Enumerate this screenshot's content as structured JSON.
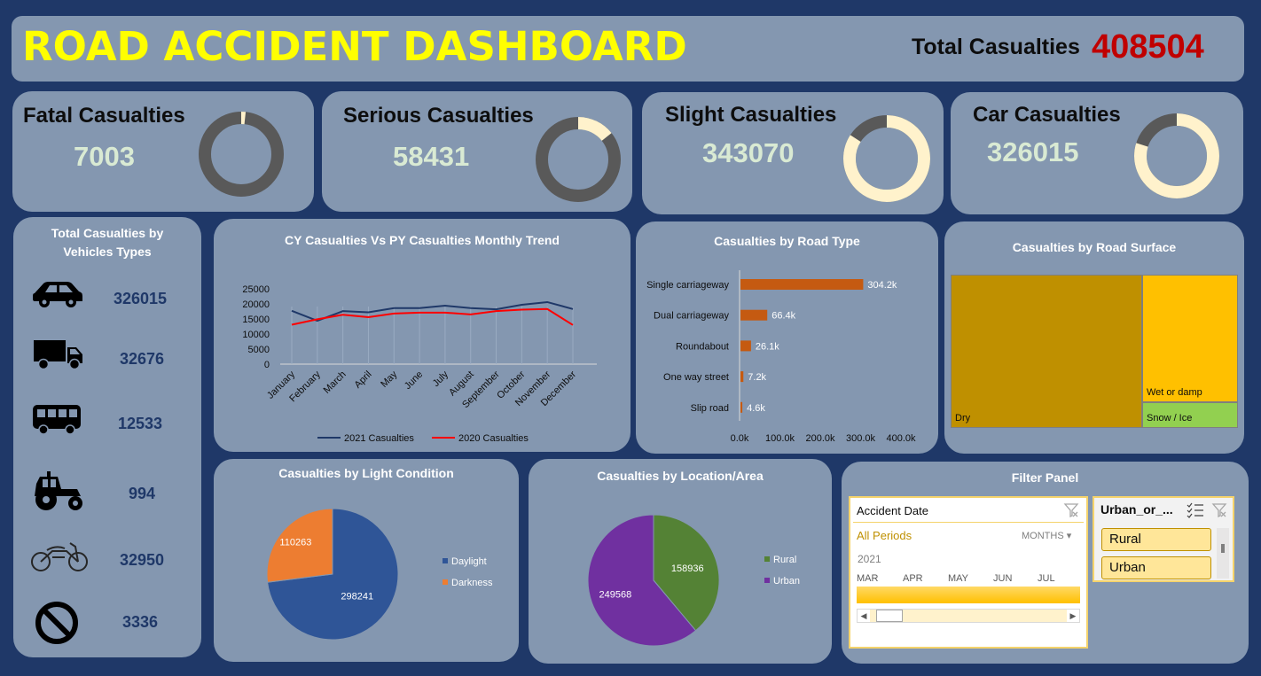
{
  "header": {
    "title": "ROAD ACCIDENT DASHBOARD",
    "total_label": "Total Casualties",
    "total_value": "408504"
  },
  "kpis": [
    {
      "label": "Fatal Casualties",
      "value": "7003",
      "share": 0.017
    },
    {
      "label": "Serious Casualties",
      "value": "58431",
      "share": 0.143
    },
    {
      "label": "Slight Casualties",
      "value": "343070",
      "share": 0.84
    },
    {
      "label": "Car Casualties",
      "value": "326015",
      "share": 0.798
    }
  ],
  "colors": {
    "donut_highlight": "#fff2cc",
    "donut_rest": "#595959",
    "line_2021": "#1f3868",
    "line_2020": "#ff0000",
    "bar": "#c55a11",
    "daylight": "#2f5597",
    "darkness": "#ed7d31",
    "rural": "#548235",
    "urban": "#7030a0",
    "dry": "#bf9000",
    "wet": "#ffc000",
    "snow": "#92d050"
  },
  "vehicles": {
    "title_line1": "Total Casualties by",
    "title_line2": "Vehicles Types",
    "items": [
      {
        "icon": "car-icon",
        "value": "326015"
      },
      {
        "icon": "truck-icon",
        "value": "32676"
      },
      {
        "icon": "bus-icon",
        "value": "12533"
      },
      {
        "icon": "tractor-icon",
        "value": "994"
      },
      {
        "icon": "motorcycle-icon",
        "value": "32950"
      },
      {
        "icon": "other-icon",
        "value": "3336"
      }
    ]
  },
  "trend": {
    "title": "CY Casualties Vs PY Casualties Monthly Trend",
    "chart_data": {
      "type": "line",
      "categories": [
        "January",
        "February",
        "March",
        "April",
        "May",
        "June",
        "July",
        "August",
        "September",
        "October",
        "November",
        "December"
      ],
      "series": [
        {
          "name": "2021 Casualties",
          "values": [
            17700,
            14400,
            17600,
            17200,
            18600,
            18600,
            19400,
            18600,
            18200,
            19700,
            20600,
            18300
          ]
        },
        {
          "name": "2020 Casualties",
          "values": [
            13100,
            14900,
            16400,
            15600,
            16800,
            17100,
            17100,
            16500,
            17600,
            18100,
            18300,
            13000
          ]
        }
      ],
      "yticks": [
        "25000",
        "20000",
        "15000",
        "10000",
        "5000",
        "0"
      ],
      "ylim": [
        0,
        25000
      ]
    }
  },
  "road_type": {
    "title": "Casualties by Road Type",
    "chart_data": {
      "type": "bar",
      "categories": [
        "Single carriageway",
        "Dual carriageway",
        "Roundabout",
        "One way street",
        "Slip road"
      ],
      "values": [
        304.2,
        66.4,
        26.1,
        7.2,
        4.6
      ],
      "value_labels": [
        "304.2k",
        "66.4k",
        "26.1k",
        "7.2k",
        "4.6k"
      ],
      "xticks": [
        "0.0k",
        "100.0k",
        "200.0k",
        "300.0k",
        "400.0k"
      ],
      "xlim": [
        0,
        400
      ]
    }
  },
  "surface": {
    "title": "Casualties by Road Surface",
    "chart_data": {
      "type": "treemap",
      "categories": [
        "Dry",
        "Wet or damp",
        "Snow / Ice"
      ]
    }
  },
  "light": {
    "title": "Casualties by Light Condition",
    "chart_data": {
      "type": "pie",
      "categories": [
        "Daylight",
        "Darkness"
      ],
      "values": [
        298241,
        110263
      ],
      "labels": [
        "298241",
        "110263"
      ]
    }
  },
  "location": {
    "title": "Casualties by Location/Area",
    "chart_data": {
      "type": "pie",
      "categories": [
        "Rural",
        "Urban"
      ],
      "values": [
        158936,
        249568
      ],
      "labels": [
        "158936",
        "249568"
      ]
    }
  },
  "filter": {
    "title": "Filter Panel",
    "date_slicer": {
      "title": "Accident Date",
      "all_periods": "All Periods",
      "unit": "MONTHS",
      "year": "2021",
      "months": [
        "MAR",
        "APR",
        "MAY",
        "JUN",
        "JUL"
      ]
    },
    "area_slicer": {
      "title": "Urban_or_...",
      "options": [
        "Rural",
        "Urban"
      ]
    }
  }
}
